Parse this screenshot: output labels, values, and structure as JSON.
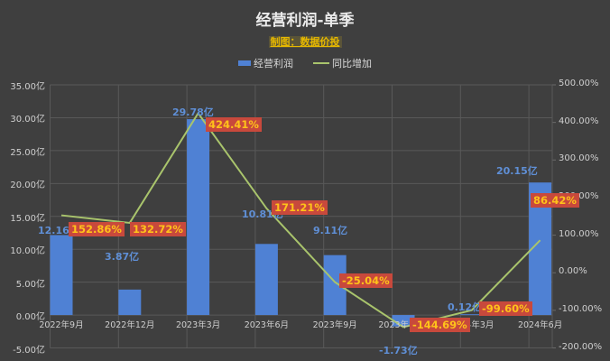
{
  "header": {
    "title": "经营利润-单季",
    "subtitle": "制图：数据价投"
  },
  "legend": {
    "bar_label": "经营利润",
    "line_label": "同比增加"
  },
  "axes": {
    "left_ticks": [
      "35.00亿",
      "30.00亿",
      "25.00亿",
      "20.00亿",
      "15.00亿",
      "10.00亿",
      "5.00亿",
      "0.00亿",
      "-5.00亿"
    ],
    "right_ticks": [
      "500.00%",
      "400.00%",
      "300.00%",
      "200.00%",
      "100.00%",
      "0.00%",
      "-100.00%",
      "-200.00%"
    ]
  },
  "colors": {
    "background": "#3f3f3f",
    "bar": "#4f81d4",
    "line": "#a9c46c",
    "label_box": "#c8493c",
    "label_text": "#ffc21a",
    "value_text": "#5f8fd6"
  },
  "chart_data": {
    "type": "bar+line",
    "title": "经营利润-单季",
    "subtitle": "制图：数据价投",
    "categories": [
      "2022年9月",
      "2022年12月",
      "2023年3月",
      "2023年6月",
      "2023年9月",
      "2023年12月",
      "2024年3月",
      "2024年6月"
    ],
    "series": [
      {
        "name": "经营利润",
        "type": "bar",
        "axis": "left",
        "unit": "亿",
        "values": [
          12.16,
          3.87,
          29.78,
          10.81,
          9.11,
          -1.73,
          0.12,
          20.15
        ],
        "labels": [
          "12.16亿",
          "3.87亿",
          "29.78亿",
          "10.81亿",
          "9.11亿",
          "-1.73亿",
          "0.12亿",
          "20.15亿"
        ]
      },
      {
        "name": "同比增加",
        "type": "line",
        "axis": "right",
        "unit": "%",
        "values": [
          152.86,
          132.72,
          424.41,
          171.21,
          -25.04,
          -144.69,
          -99.6,
          86.42
        ],
        "labels": [
          "152.86%",
          "132.72%",
          "424.41%",
          "171.21%",
          "-25.04%",
          "-144.69%",
          "-99.60%",
          "86.42%"
        ]
      }
    ],
    "ylim_left": [
      -5,
      35
    ],
    "ylim_right": [
      -200,
      500
    ],
    "grid": true,
    "legend_position": "top"
  }
}
